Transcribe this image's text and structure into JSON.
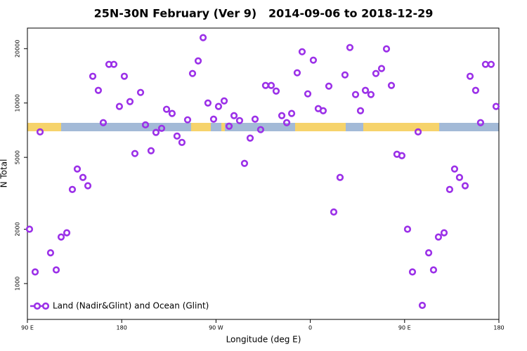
{
  "chart_data": {
    "type": "scatter",
    "title": "25N-30N February (Ver 9)   2014-09-06 to 2018-12-29",
    "x_label": "Longitude (deg E)",
    "y_label": "N Total",
    "x": [
      92,
      97.4,
      102.1,
      112.1,
      117.5,
      122.2,
      127.6,
      132.9,
      137.6,
      143,
      147.7,
      152.4,
      157.7,
      162.4,
      167.8,
      172.5,
      177.8,
      182.5,
      187.9,
      192.6,
      198,
      202.7,
      208,
      212.7,
      218.1,
      222.8,
      228.1,
      232.8,
      237.5,
      242.9,
      247.6,
      253,
      257.7,
      262.3,
      267.7,
      272.4,
      277.8,
      282.5,
      287.2,
      292.5,
      297.2,
      302.6,
      307.3,
      312.6,
      317.3,
      322.7,
      327.4,
      332.8,
      337.5,
      342.2,
      347.5,
      352.2,
      357.6,
      362.9,
      367.6,
      372.3,
      377.7,
      382.4,
      388.4,
      393.1,
      397.8,
      403.2,
      407.9,
      412.6,
      417.9,
      422.6,
      428,
      432.7,
      437.4,
      442.7,
      447.4,
      452.8,
      457.5,
      462.9,
      466.9,
      473,
      477.6,
      482.3,
      487.7,
      493,
      497.7,
      502.4,
      507.8,
      512.5,
      517.8,
      522.5,
      527.2,
      532.6,
      537.3
    ],
    "series": [
      {
        "name": "Land (Nadir&Glint) and Ocean (Glint)",
        "color": "#9b30e8",
        "values": [
          2000,
          1160,
          6920,
          1480,
          1190,
          1810,
          1910,
          3320,
          4310,
          3870,
          3480,
          14060,
          11750,
          7780,
          16370,
          16370,
          9570,
          14060,
          10180,
          5250,
          11440,
          7570,
          5440,
          6870,
          7240,
          9230,
          8750,
          6560,
          6050,
          8070,
          14570,
          17110,
          23010,
          10000,
          8140,
          9570,
          10270,
          7440,
          8510,
          7990,
          4630,
          6390,
          8140,
          7120,
          12510,
          12510,
          11640,
          8510,
          7780,
          8750,
          14700,
          19230,
          11240,
          17270,
          9310,
          9060,
          12400,
          2490,
          3870,
          14310,
          20290,
          11140,
          9060,
          11750,
          11140,
          14570,
          15520,
          19940,
          12510,
          5200,
          5110,
          2000,
          1160,
          6920,
          757,
          1480,
          1190,
          1810,
          1910,
          3320,
          4310,
          3870,
          3480,
          14060,
          11750,
          7780,
          16370,
          16370,
          9570
        ]
      }
    ],
    "xlim": [
      90,
      540
    ],
    "xticks": [
      {
        "value": 90,
        "label": "90 E"
      },
      180,
      {
        "value": 270,
        "label": "90 W"
      },
      {
        "value": 360,
        "label": "0"
      },
      {
        "value": 450,
        "label": "90 E"
      },
      {
        "value": 540,
        "label": "180"
      }
    ],
    "ylim": [
      633,
      26000
    ],
    "yticks": [
      1000,
      2000,
      5000,
      10000,
      20000
    ],
    "log_y": true,
    "legend": "lower left"
  }
}
